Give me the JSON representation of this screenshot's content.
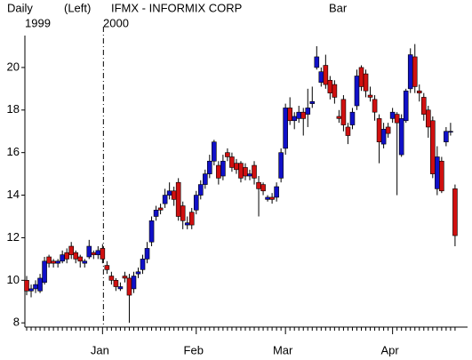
{
  "chart_data": {
    "type": "candlestick",
    "period": "Daily",
    "axis_side": "(Left)",
    "title": "IFMX - INFORMIX CORP",
    "style": "Bar",
    "year_labels": [
      "1999",
      "2000"
    ],
    "up_color": "#1010c8",
    "down_color": "#d01010",
    "categories": [
      null,
      null,
      null,
      null,
      null,
      null,
      null,
      null,
      null,
      null,
      null,
      null,
      null,
      null,
      null,
      null,
      null,
      "Jan",
      null,
      null,
      null,
      null,
      null,
      null,
      null,
      null,
      null,
      null,
      null,
      null,
      null,
      null,
      null,
      null,
      null,
      null,
      null,
      null,
      "Feb",
      null,
      null,
      null,
      null,
      null,
      null,
      null,
      null,
      null,
      null,
      null,
      null,
      null,
      null,
      null,
      null,
      null,
      null,
      null,
      "Mar",
      null,
      null,
      null,
      null,
      null,
      null,
      null,
      null,
      null,
      null,
      null,
      null,
      null,
      null,
      null,
      null,
      null,
      null,
      null,
      null,
      null,
      null,
      null,
      "Apr",
      null,
      null,
      null,
      null,
      null,
      null,
      null,
      null,
      null,
      null,
      null,
      null,
      null,
      null
    ],
    "open": [
      10,
      9.5,
      9.6,
      9.5,
      9.9,
      11.1,
      10.9,
      10.8,
      10.9,
      11.3,
      11.6,
      11.3,
      11.1,
      10.8,
      11.1,
      11.3,
      11.2,
      11.5,
      10.7,
      10.2,
      10,
      9.6,
      10.2,
      10.1,
      9.6,
      10.3,
      10.5,
      11,
      11.8,
      13,
      13.4,
      13.6,
      14,
      14.2,
      14.6,
      13.5,
      12.6,
      13.2,
      13.3,
      14,
      14.5,
      15,
      15.6,
      15.4,
      14.9,
      16,
      15.8,
      15.5,
      15.5,
      15.3,
      14.9,
      15.4,
      14.6,
      14.5,
      13.8,
      13.9,
      13.9,
      14.8,
      16.2,
      18.1,
      17.5,
      17.6,
      17.9,
      17.8,
      18.3,
      20,
      19.3,
      20.1,
      19.4,
      19.2,
      17.7,
      18.5,
      17.2,
      17.3,
      18.2,
      20,
      19.7,
      18.7,
      18.5,
      17.6,
      16.4,
      17.2,
      17.6,
      17.8,
      15.9,
      17.5,
      19,
      20.5,
      18.9,
      18.6,
      18,
      17.5,
      14.3,
      15.6,
      16.5,
      17,
      14.3
    ],
    "high": [
      10.2,
      9.8,
      10,
      10.3,
      11.1,
      11.2,
      11,
      11,
      11.4,
      11.5,
      11.8,
      11.4,
      11.2,
      11,
      11.9,
      11.4,
      11.6,
      11.7,
      10.9,
      10.4,
      10.1,
      9.9,
      10.4,
      10.3,
      10.4,
      10.6,
      11.2,
      11.8,
      13,
      13.5,
      13.6,
      14.3,
      14.6,
      14.4,
      14.8,
      13.7,
      13,
      13.4,
      14.2,
      14.7,
      15.2,
      15.9,
      16.6,
      15.6,
      15.9,
      16.2,
      16,
      15.7,
      15.6,
      15.5,
      15.2,
      15.6,
      14.9,
      14.6,
      14,
      14.1,
      14.6,
      16.2,
      18.3,
      18.6,
      17.9,
      18.2,
      18.1,
      19,
      19.1,
      21,
      20,
      20.6,
      19.6,
      19.4,
      18,
      18.7,
      17.4,
      18.1,
      19.9,
      20.1,
      19.9,
      19.1,
      18.7,
      17.8,
      17.4,
      17.4,
      18.1,
      17.9,
      17.8,
      19,
      20.9,
      21.1,
      19.2,
      18.8,
      18.2,
      17.7,
      16.3,
      15.8,
      17.2,
      17.4,
      14.5
    ],
    "low": [
      9.3,
      9.2,
      9.4,
      9.4,
      9.8,
      10.6,
      10.6,
      10.6,
      10.8,
      10.8,
      11,
      10.8,
      10.6,
      10.6,
      11,
      11,
      11,
      10.8,
      10.3,
      9.8,
      9.5,
      9.5,
      9.9,
      8,
      9.4,
      10.1,
      10.3,
      10.8,
      11.6,
      12.8,
      13.1,
      13.4,
      13.8,
      13.5,
      12.8,
      12.4,
      12.4,
      12.4,
      13.1,
      13.8,
      14.3,
      14.8,
      15.4,
      14.5,
      14.7,
      15.6,
      15.1,
      15,
      14.6,
      14.7,
      14.7,
      14.5,
      13,
      14,
      13.7,
      13.6,
      13.7,
      14.6,
      15.9,
      17.3,
      17.1,
      17.4,
      16.8,
      17.2,
      18.1,
      19.9,
      19.1,
      19,
      18.5,
      18.3,
      17.4,
      17,
      16.4,
      17.1,
      18,
      18.9,
      18.6,
      18.4,
      17.5,
      15.5,
      16.2,
      16.7,
      17.4,
      14,
      15.8,
      17.4,
      18.8,
      18.8,
      18.4,
      17.5,
      16.7,
      14.8,
      14,
      14.1,
      16.3,
      16.8,
      11.6
    ],
    "close": [
      9.5,
      9.6,
      9.8,
      10.1,
      10.9,
      10.8,
      10.8,
      10.9,
      11.2,
      11,
      11.2,
      11,
      10.9,
      10.9,
      11.6,
      11.2,
      11.4,
      11,
      10.5,
      10,
      9.7,
      9.7,
      10.1,
      9.3,
      10.2,
      10.4,
      11,
      11.5,
      12.8,
      13.3,
      13.3,
      14,
      14.2,
      13.8,
      13,
      12.8,
      12.7,
      12.6,
      14,
      14.5,
      15,
      15.6,
      16.5,
      14.8,
      15.6,
      15.8,
      15.3,
      15.2,
      14.8,
      14.9,
      15,
      14.8,
      14.3,
      14.2,
      13.9,
      13.8,
      14.4,
      16,
      18.1,
      17.5,
      17.7,
      17.9,
      17.6,
      18.1,
      18.4,
      20.5,
      19.8,
      19.2,
      18.8,
      18.6,
      17.6,
      17.3,
      16.8,
      17.9,
      19.6,
      19.1,
      18.9,
      18.6,
      17.9,
      16.5,
      17.1,
      16.9,
      17.9,
      17.4,
      17.6,
      18.9,
      20.6,
      19.1,
      18.8,
      17.8,
      17.2,
      15,
      15.8,
      14.2,
      17,
      17,
      12.1
    ],
    "ylim": [
      7.8,
      21.5
    ],
    "yticks": [
      8,
      10,
      12,
      14,
      16,
      18,
      20
    ]
  }
}
